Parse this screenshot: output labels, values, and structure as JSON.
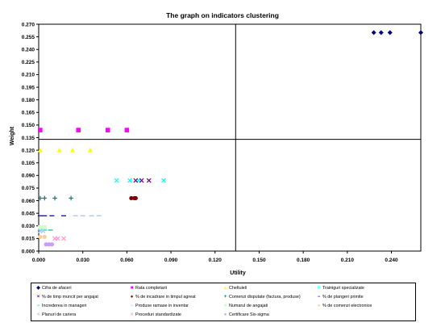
{
  "chart_data": {
    "type": "scatter",
    "title": "The graph on indicators clustering",
    "xlabel": "Utility",
    "ylabel": "Weight",
    "xlim": [
      0,
      0.26
    ],
    "ylim": [
      0,
      0.27
    ],
    "x_ticks": [
      "0.000",
      "0.030",
      "0.060",
      "0.090",
      "0.120",
      "0.150",
      "0.180",
      "0.210",
      "0.240"
    ],
    "y_ticks": [
      "0.000",
      "0.015",
      "0.030",
      "0.045",
      "0.060",
      "0.075",
      "0.090",
      "0.105",
      "0.120",
      "0.135",
      "0.150",
      "0.165",
      "0.180",
      "0.195",
      "0.210",
      "0.225",
      "0.240",
      "0.255",
      "0.270"
    ],
    "reference_lines": {
      "x": 0.134,
      "y": 0.133
    },
    "grid": false,
    "legend_position": "bottom",
    "series": [
      {
        "name": "Cifra de afaceri",
        "color": "#000080",
        "marker": "◆",
        "points": [
          [
            0.228,
            0.26
          ],
          [
            0.233,
            0.26
          ],
          [
            0.239,
            0.26
          ],
          [
            0.26,
            0.26
          ]
        ]
      },
      {
        "name": "Rata completarii",
        "color": "#ff00ff",
        "marker": "■",
        "points": [
          [
            0.001,
            0.144
          ],
          [
            0.027,
            0.144
          ],
          [
            0.047,
            0.144
          ],
          [
            0.06,
            0.144
          ]
        ]
      },
      {
        "name": "Cheltuieli",
        "color": "#ffff00",
        "marker": "▲",
        "points": [
          [
            0.001,
            0.12
          ],
          [
            0.014,
            0.12
          ],
          [
            0.023,
            0.12
          ],
          [
            0.035,
            0.12
          ]
        ]
      },
      {
        "name": "Trainiguri specializate",
        "color": "#00ffff",
        "marker": "×",
        "points": [
          [
            0.053,
            0.084
          ],
          [
            0.062,
            0.084
          ],
          [
            0.068,
            0.084
          ],
          [
            0.085,
            0.084
          ]
        ]
      },
      {
        "name": "% de timp muncit per angajat",
        "color": "#800080",
        "marker": "×",
        "points": [
          [
            0.066,
            0.084
          ],
          [
            0.07,
            0.084
          ],
          [
            0.075,
            0.084
          ]
        ]
      },
      {
        "name": "% de incadrare in timpul agreat",
        "color": "#800000",
        "marker": "●",
        "points": [
          [
            0.063,
            0.063
          ],
          [
            0.065,
            0.063
          ],
          [
            0.066,
            0.063
          ]
        ]
      },
      {
        "name": "Comenzi disputate (factura, produse)",
        "color": "#008080",
        "marker": "+",
        "points": [
          [
            0.001,
            0.063
          ],
          [
            0.004,
            0.063
          ],
          [
            0.011,
            0.063
          ],
          [
            0.022,
            0.063
          ]
        ]
      },
      {
        "name": "% de plangeri primite",
        "color": "#0000ff",
        "marker": "−",
        "points": [
          [
            0.001,
            0.042
          ],
          [
            0.004,
            0.042
          ],
          [
            0.009,
            0.042
          ],
          [
            0.017,
            0.042
          ]
        ]
      },
      {
        "name": "Increderea in manageri",
        "color": "#00cc99",
        "marker": "−",
        "points": [
          [
            0.001,
            0.025
          ],
          [
            0.004,
            0.025
          ],
          [
            0.008,
            0.025
          ]
        ]
      },
      {
        "name": "Produse ramase in inventar",
        "color": "#99ccff",
        "marker": "−",
        "points": [
          [
            0.025,
            0.042
          ],
          [
            0.03,
            0.042
          ],
          [
            0.036,
            0.042
          ],
          [
            0.041,
            0.042
          ]
        ]
      },
      {
        "name": "Numarul de angajati",
        "color": "#ccffcc",
        "marker": "■",
        "points": [
          [
            0.001,
            0.028
          ],
          [
            0.004,
            0.028
          ]
        ]
      },
      {
        "name": "% de comenzi electronice",
        "color": "#ffcc99",
        "marker": "●",
        "points": [
          [
            0.001,
            0.017
          ],
          [
            0.004,
            0.017
          ]
        ]
      },
      {
        "name": "Planuri de cariera",
        "color": "#99ccff",
        "marker": "×",
        "points": [
          [
            0.001,
            0.024
          ],
          [
            0.003,
            0.024
          ]
        ]
      },
      {
        "name": "Proceduri standardizate",
        "color": "#ff99cc",
        "marker": "×",
        "points": [
          [
            0.011,
            0.015
          ],
          [
            0.013,
            0.015
          ],
          [
            0.017,
            0.015
          ]
        ]
      },
      {
        "name": "Certificare Six-sigma",
        "color": "#cc99ff",
        "marker": "●",
        "points": [
          [
            0.005,
            0.008
          ],
          [
            0.007,
            0.008
          ],
          [
            0.009,
            0.008
          ]
        ]
      }
    ]
  }
}
